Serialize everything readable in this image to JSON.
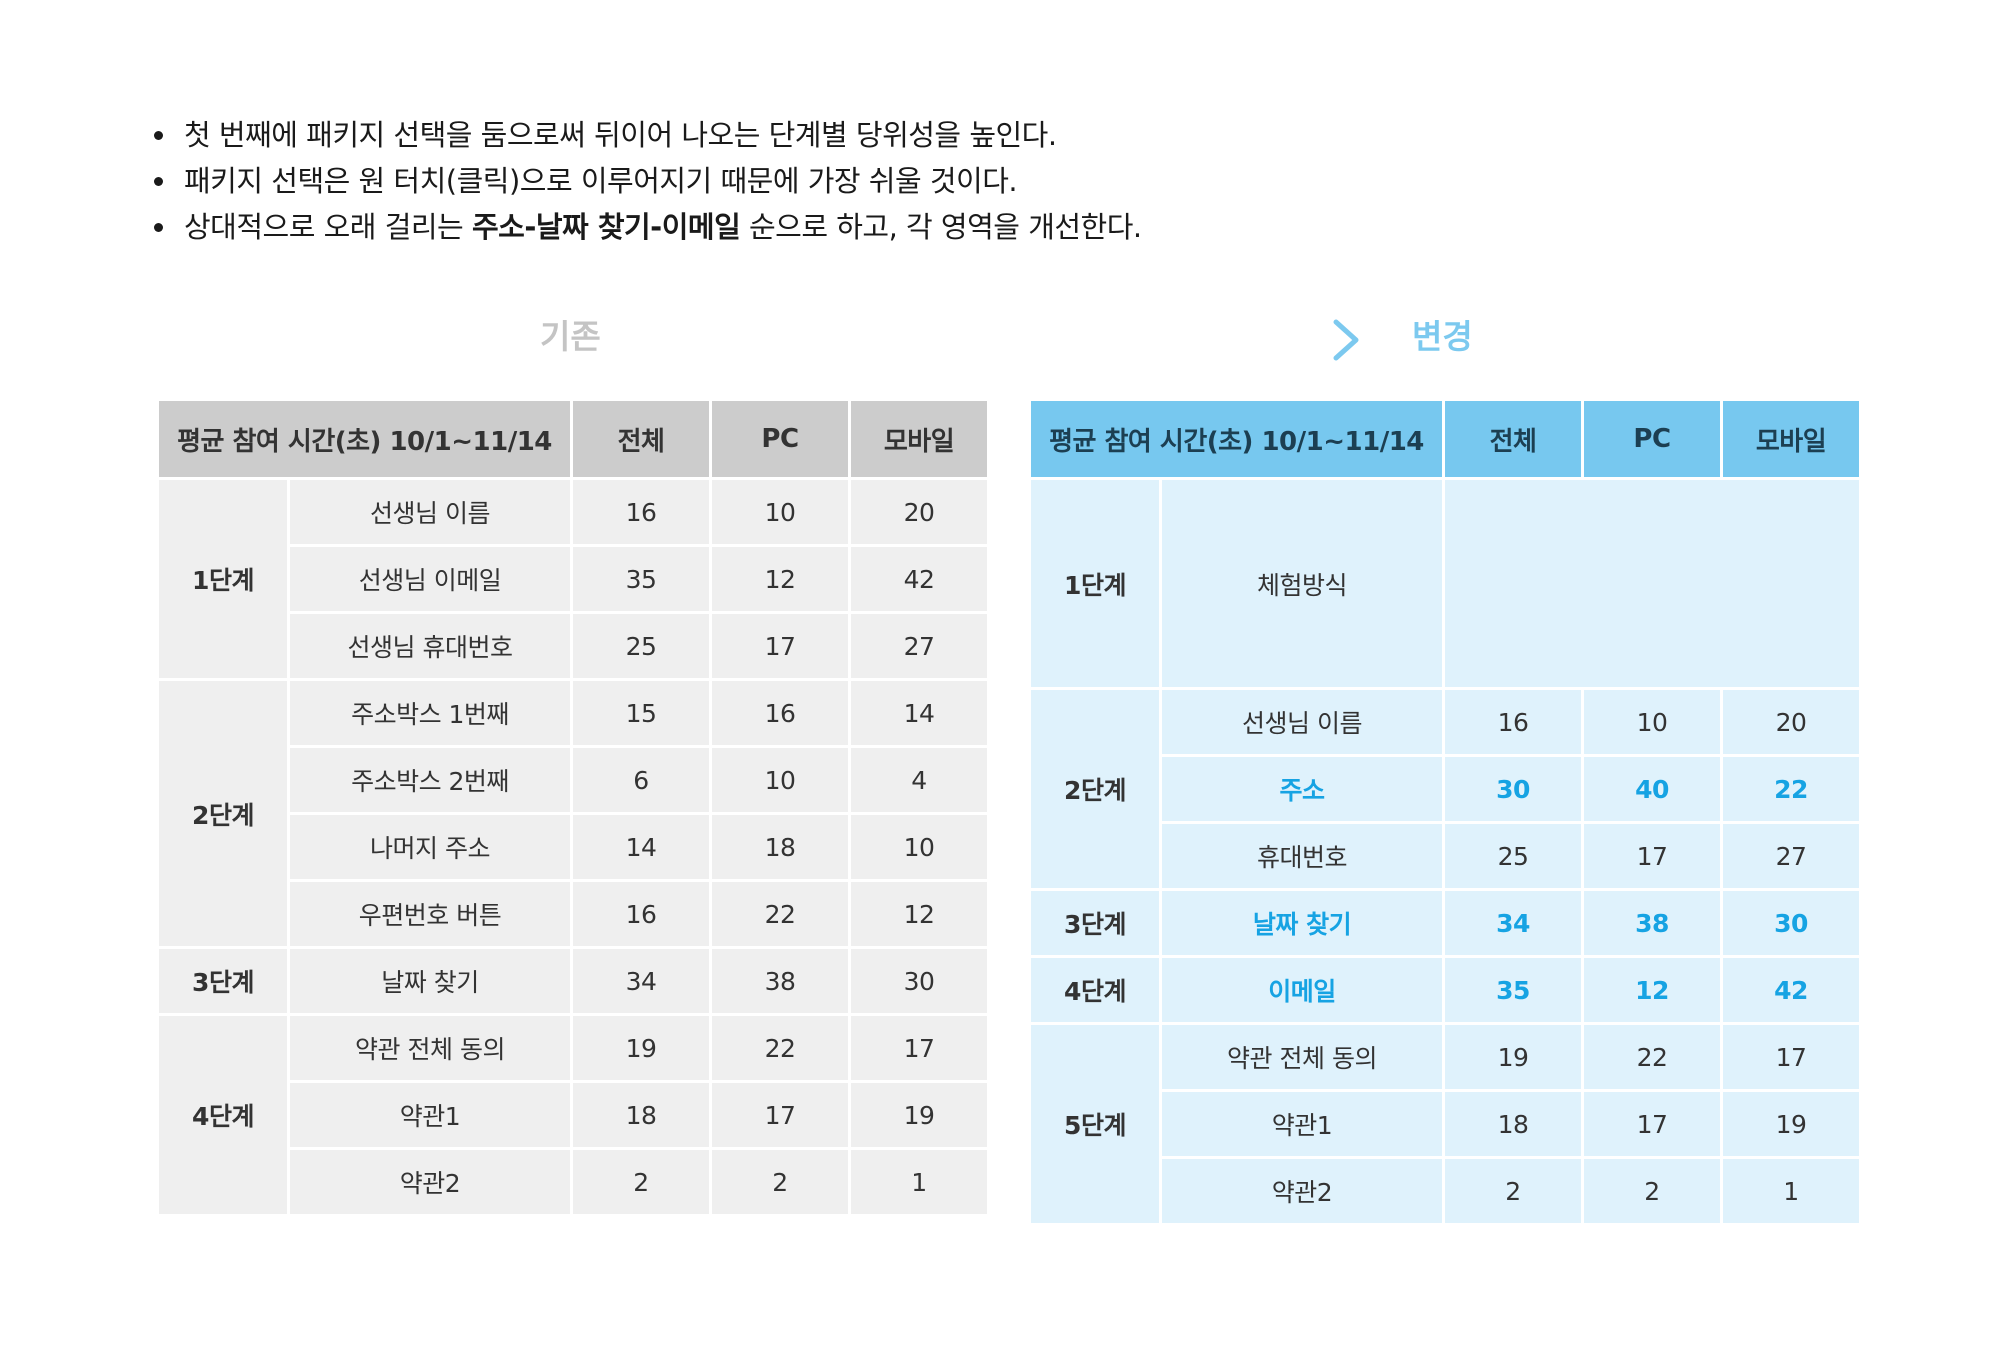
{
  "bullets": {
    "line1": "첫 번째에 패키지 선택을 둠으로써 뒤이어 나오는 단계별 당위성을 높인다.",
    "line2": "패키지 선택은 원 터치(클릭)으로 이루어지기 때문에 가장 쉬울 것이다.",
    "line3_pre": "상대적으로 오래 걸리는 ",
    "line3_bold": "주소-날짜 찾기-이메일",
    "line3_post": " 순으로 하고, 각 영역을 개선한다."
  },
  "flow": {
    "before_label": "기존",
    "after_label": "변경",
    "arrow_color": "#8ccdef"
  },
  "colors": {
    "before_header": "#cccccc",
    "before_cell": "#efefef",
    "after_header": "#77c8ef",
    "after_cell": "#dff2fc",
    "highlight": "#16a3e3"
  },
  "before_table": {
    "headers": [
      "평균 참여 시간(초) 10/1~11/14",
      "전체",
      "PC",
      "모바일"
    ],
    "stages": [
      "1단계",
      "2단계",
      "3단계",
      "4단계"
    ],
    "rows": [
      {
        "item": "선생님 이름",
        "total": "16",
        "pc": "10",
        "mobile": "20"
      },
      {
        "item": "선생님 이메일",
        "total": "35",
        "pc": "12",
        "mobile": "42"
      },
      {
        "item": "선생님 휴대번호",
        "total": "25",
        "pc": "17",
        "mobile": "27"
      },
      {
        "item": "주소박스 1번째",
        "total": "15",
        "pc": "16",
        "mobile": "14"
      },
      {
        "item": "주소박스 2번째",
        "total": "6",
        "pc": "10",
        "mobile": "4"
      },
      {
        "item": "나머지 주소",
        "total": "14",
        "pc": "18",
        "mobile": "10"
      },
      {
        "item": "우편번호 버튼",
        "total": "16",
        "pc": "22",
        "mobile": "12"
      },
      {
        "item": "날짜 찾기",
        "total": "34",
        "pc": "38",
        "mobile": "30"
      },
      {
        "item": "약관 전체 동의",
        "total": "19",
        "pc": "22",
        "mobile": "17"
      },
      {
        "item": "약관1",
        "total": "18",
        "pc": "17",
        "mobile": "19"
      },
      {
        "item": "약관2",
        "total": "2",
        "pc": "2",
        "mobile": "1"
      }
    ]
  },
  "after_table": {
    "headers": [
      "평균 참여 시간(초) 10/1~11/14",
      "전체",
      "PC",
      "모바일"
    ],
    "stages": [
      "1단계",
      "2단계",
      "3단계",
      "4단계",
      "5단계"
    ],
    "rows": [
      {
        "item": "체험방식",
        "total": "",
        "pc": "",
        "mobile": ""
      },
      {
        "item": "선생님 이름",
        "total": "16",
        "pc": "10",
        "mobile": "20"
      },
      {
        "item": "주소",
        "total": "30",
        "pc": "40",
        "mobile": "22"
      },
      {
        "item": "휴대번호",
        "total": "25",
        "pc": "17",
        "mobile": "27"
      },
      {
        "item": "날짜 찾기",
        "total": "34",
        "pc": "38",
        "mobile": "30"
      },
      {
        "item": "이메일",
        "total": "35",
        "pc": "12",
        "mobile": "42"
      },
      {
        "item": "약관 전체 동의",
        "total": "19",
        "pc": "22",
        "mobile": "17"
      },
      {
        "item": "약관1",
        "total": "18",
        "pc": "17",
        "mobile": "19"
      },
      {
        "item": "약관2",
        "total": "2",
        "pc": "2",
        "mobile": "1"
      }
    ]
  }
}
